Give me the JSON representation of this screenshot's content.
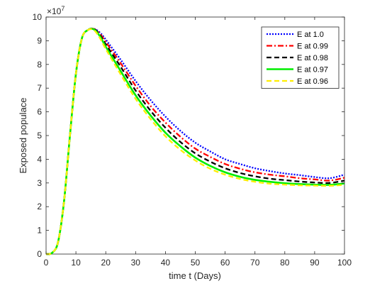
{
  "chart_data": {
    "type": "line",
    "title": "",
    "xlabel": "time t (Days)",
    "ylabel": "Exposed populace",
    "exponent_label": "×10^7",
    "exponent_base": "×10",
    "exponent_power": "7",
    "xlim": [
      0,
      100
    ],
    "ylim": [
      0,
      10
    ],
    "xticks": [
      0,
      10,
      20,
      30,
      40,
      50,
      60,
      70,
      80,
      90,
      100
    ],
    "yticks": [
      0,
      1,
      2,
      3,
      4,
      5,
      6,
      7,
      8,
      9,
      10
    ],
    "grid": false,
    "legend_position": "top-right",
    "x": [
      0,
      2,
      4,
      6,
      8,
      10,
      12,
      14,
      16,
      18,
      20,
      25,
      30,
      35,
      40,
      45,
      50,
      55,
      60,
      65,
      70,
      75,
      80,
      85,
      90,
      95,
      100
    ],
    "series": [
      {
        "name": "E at 1.0",
        "color": "#0000ff",
        "style": "dotted",
        "values": [
          0,
          0.05,
          0.5,
          2.2,
          5.0,
          7.6,
          9.1,
          9.45,
          9.5,
          9.35,
          9.05,
          8.2,
          7.3,
          6.5,
          5.8,
          5.2,
          4.7,
          4.33,
          4.0,
          3.8,
          3.62,
          3.5,
          3.4,
          3.33,
          3.25,
          3.2,
          3.35
        ]
      },
      {
        "name": "E at 0.99",
        "color": "#ff0000",
        "style": "dashdot",
        "values": [
          0,
          0.05,
          0.5,
          2.2,
          5.0,
          7.6,
          9.1,
          9.45,
          9.5,
          9.3,
          8.95,
          8.05,
          7.1,
          6.25,
          5.55,
          4.95,
          4.45,
          4.1,
          3.8,
          3.6,
          3.45,
          3.35,
          3.28,
          3.2,
          3.15,
          3.1,
          3.22
        ]
      },
      {
        "name": "E at 0.98",
        "color": "#000000",
        "style": "dashed",
        "values": [
          0,
          0.05,
          0.5,
          2.2,
          5.0,
          7.6,
          9.1,
          9.45,
          9.5,
          9.25,
          8.85,
          7.9,
          6.9,
          6.05,
          5.33,
          4.73,
          4.25,
          3.9,
          3.62,
          3.42,
          3.28,
          3.18,
          3.12,
          3.06,
          3.02,
          3.0,
          3.1
        ]
      },
      {
        "name": "E at 0.97",
        "color": "#00ee00",
        "style": "solid",
        "values": [
          0,
          0.05,
          0.5,
          2.2,
          5.0,
          7.6,
          9.1,
          9.45,
          9.48,
          9.2,
          8.75,
          7.72,
          6.7,
          5.85,
          5.12,
          4.55,
          4.07,
          3.72,
          3.45,
          3.26,
          3.13,
          3.05,
          2.99,
          2.95,
          2.93,
          2.92,
          2.98
        ]
      },
      {
        "name": "E at 0.96",
        "color": "#ffee00",
        "style": "dashed",
        "values": [
          0,
          0.05,
          0.5,
          2.2,
          5.0,
          7.6,
          9.1,
          9.45,
          9.45,
          9.12,
          8.65,
          7.58,
          6.55,
          5.7,
          4.97,
          4.4,
          3.95,
          3.6,
          3.35,
          3.17,
          3.05,
          2.97,
          2.93,
          2.9,
          2.89,
          2.88,
          2.92
        ]
      }
    ]
  }
}
